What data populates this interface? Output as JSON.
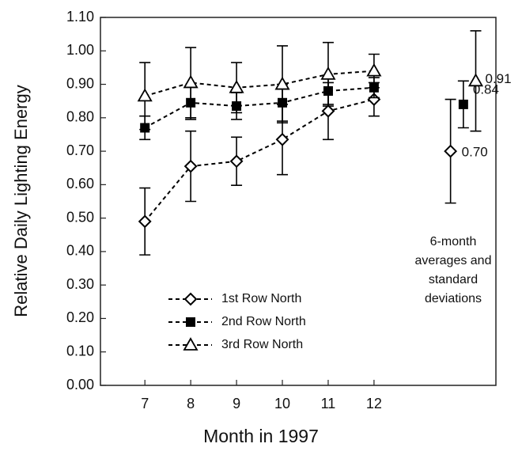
{
  "chart_data": {
    "type": "line",
    "x_label": "Month in 1997",
    "y_label": "Relative Daily Lighting Energy",
    "x": [
      7,
      8,
      9,
      10,
      11,
      12
    ],
    "xlim": [
      6.03,
      14.66
    ],
    "xticks": [
      7,
      8,
      9,
      10,
      11,
      12
    ],
    "ylim": [
      0,
      1.1
    ],
    "yticks": [
      {
        "value": 0,
        "label": "0.00"
      },
      {
        "value": 0.1,
        "label": "0.10"
      },
      {
        "value": 0.2,
        "label": "0.20"
      },
      {
        "value": 0.3,
        "label": "0.30"
      },
      {
        "value": 0.4,
        "label": "0.40"
      },
      {
        "value": 0.5,
        "label": "0.50"
      },
      {
        "value": 0.6,
        "label": "0.60"
      },
      {
        "value": 0.7,
        "label": "0.70"
      },
      {
        "value": 0.8,
        "label": "0.80"
      },
      {
        "value": 0.9,
        "label": "0.90"
      },
      {
        "value": 1.0,
        "label": "1.00"
      },
      {
        "value": 1.1,
        "label": "1.10"
      }
    ],
    "series": [
      {
        "name": "1st Row North",
        "marker": "diamond",
        "color": "#000000",
        "values": [
          0.49,
          0.655,
          0.67,
          0.735,
          0.82,
          0.855
        ],
        "errors": [
          0.1,
          0.105,
          0.072,
          0.105,
          0.085,
          0.05
        ],
        "average": {
          "x": 13.67,
          "value": 0.7,
          "error": 0.155,
          "label": "0.70"
        }
      },
      {
        "name": "2nd Row North",
        "marker": "square",
        "color": "#000000",
        "values": [
          0.77,
          0.845,
          0.835,
          0.845,
          0.88,
          0.89
        ],
        "errors": [
          0.035,
          0.05,
          0.04,
          0.055,
          0.04,
          0.03
        ],
        "average": {
          "x": 13.95,
          "value": 0.84,
          "error": 0.07,
          "label": "0.84"
        }
      },
      {
        "name": "3rd Row North",
        "marker": "triangle",
        "color": "#000000",
        "values": [
          0.865,
          0.905,
          0.89,
          0.9,
          0.93,
          0.94
        ],
        "errors": [
          0.1,
          0.105,
          0.075,
          0.115,
          0.095,
          0.05
        ],
        "average": {
          "x": 14.22,
          "value": 0.91,
          "error": 0.15,
          "label": "0.91"
        }
      }
    ],
    "annotation": [
      "6-month",
      "averages and",
      "standard",
      "deviations"
    ]
  }
}
